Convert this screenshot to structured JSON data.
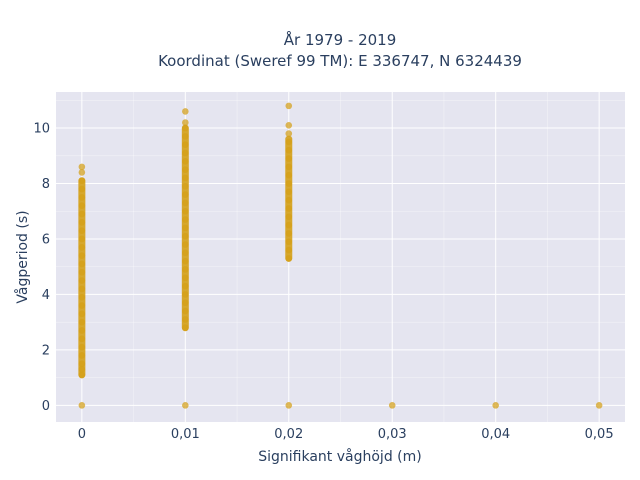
{
  "chart_data": {
    "type": "scatter",
    "title": [
      "År 1979 - 2019",
      "Koordinat (Sweref 99 TM): E 336747, N 6324439"
    ],
    "xlabel": "Signifikant våghöjd (m)",
    "ylabel": "Vågperiod (s)",
    "xlim": [
      -0.0025,
      0.0525
    ],
    "ylim": [
      -0.6,
      11.3
    ],
    "x_ticks": [
      0,
      0.01,
      0.02,
      0.03,
      0.04,
      0.05
    ],
    "x_tick_labels": [
      "0",
      "0,01",
      "0,02",
      "0,03",
      "0,04",
      "0,05"
    ],
    "y_ticks": [
      0,
      2,
      4,
      6,
      8,
      10
    ],
    "y_tick_labels": [
      "0",
      "2",
      "4",
      "6",
      "8",
      "10"
    ],
    "grid": true,
    "colors": {
      "marker": "#d4a017",
      "plot_bg": "#e5e5f0",
      "grid": "#ffffff",
      "text": "#2a3f5f"
    },
    "series": [
      {
        "color": "#d4a017",
        "points": [
          [
            0,
            0
          ],
          [
            0,
            1.1
          ],
          [
            0,
            1.3
          ],
          [
            0,
            1.5
          ],
          [
            0,
            1.8
          ],
          [
            0,
            2.1
          ],
          [
            0,
            2.4
          ],
          [
            0,
            2.7
          ],
          [
            0,
            3.0
          ],
          [
            0,
            3.3
          ],
          [
            0,
            3.6
          ],
          [
            0,
            3.9
          ],
          [
            0,
            4.2
          ],
          [
            0,
            4.5
          ],
          [
            0,
            4.8
          ],
          [
            0,
            5.1
          ],
          [
            0,
            5.4
          ],
          [
            0,
            5.7
          ],
          [
            0,
            6.0
          ],
          [
            0,
            6.3
          ],
          [
            0,
            6.6
          ],
          [
            0,
            6.9
          ],
          [
            0,
            7.2
          ],
          [
            0,
            7.5
          ],
          [
            0,
            7.8
          ],
          [
            0,
            8.1
          ],
          [
            0,
            8.4
          ],
          [
            0,
            8.6
          ],
          [
            0.01,
            0
          ],
          [
            0.01,
            2.8
          ],
          [
            0.01,
            3.1
          ],
          [
            0.01,
            3.4
          ],
          [
            0.01,
            3.7
          ],
          [
            0.01,
            4.0
          ],
          [
            0.01,
            4.3
          ],
          [
            0.01,
            4.6
          ],
          [
            0.01,
            4.9
          ],
          [
            0.01,
            5.2
          ],
          [
            0.01,
            5.5
          ],
          [
            0.01,
            5.8
          ],
          [
            0.01,
            6.1
          ],
          [
            0.01,
            6.4
          ],
          [
            0.01,
            6.7
          ],
          [
            0.01,
            7.0
          ],
          [
            0.01,
            7.3
          ],
          [
            0.01,
            7.6
          ],
          [
            0.01,
            7.9
          ],
          [
            0.01,
            8.2
          ],
          [
            0.01,
            8.5
          ],
          [
            0.01,
            8.8
          ],
          [
            0.01,
            9.1
          ],
          [
            0.01,
            9.4
          ],
          [
            0.01,
            9.7
          ],
          [
            0.01,
            10.0
          ],
          [
            0.01,
            10.2
          ],
          [
            0.01,
            10.6
          ],
          [
            0.02,
            0
          ],
          [
            0.02,
            5.3
          ],
          [
            0.02,
            5.6
          ],
          [
            0.02,
            5.9
          ],
          [
            0.02,
            6.2
          ],
          [
            0.02,
            6.5
          ],
          [
            0.02,
            6.8
          ],
          [
            0.02,
            7.1
          ],
          [
            0.02,
            7.4
          ],
          [
            0.02,
            7.7
          ],
          [
            0.02,
            8.0
          ],
          [
            0.02,
            8.3
          ],
          [
            0.02,
            8.6
          ],
          [
            0.02,
            8.9
          ],
          [
            0.02,
            9.2
          ],
          [
            0.02,
            9.5
          ],
          [
            0.02,
            9.8
          ],
          [
            0.02,
            10.1
          ],
          [
            0.02,
            10.8
          ],
          [
            0.03,
            0
          ],
          [
            0.04,
            0
          ],
          [
            0.05,
            0
          ]
        ]
      }
    ],
    "bands": [
      {
        "x": 0,
        "y_from": 1.1,
        "y_to": 8.1
      },
      {
        "x": 0.01,
        "y_from": 2.8,
        "y_to": 10.0
      },
      {
        "x": 0.02,
        "y_from": 5.3,
        "y_to": 9.6
      }
    ]
  }
}
